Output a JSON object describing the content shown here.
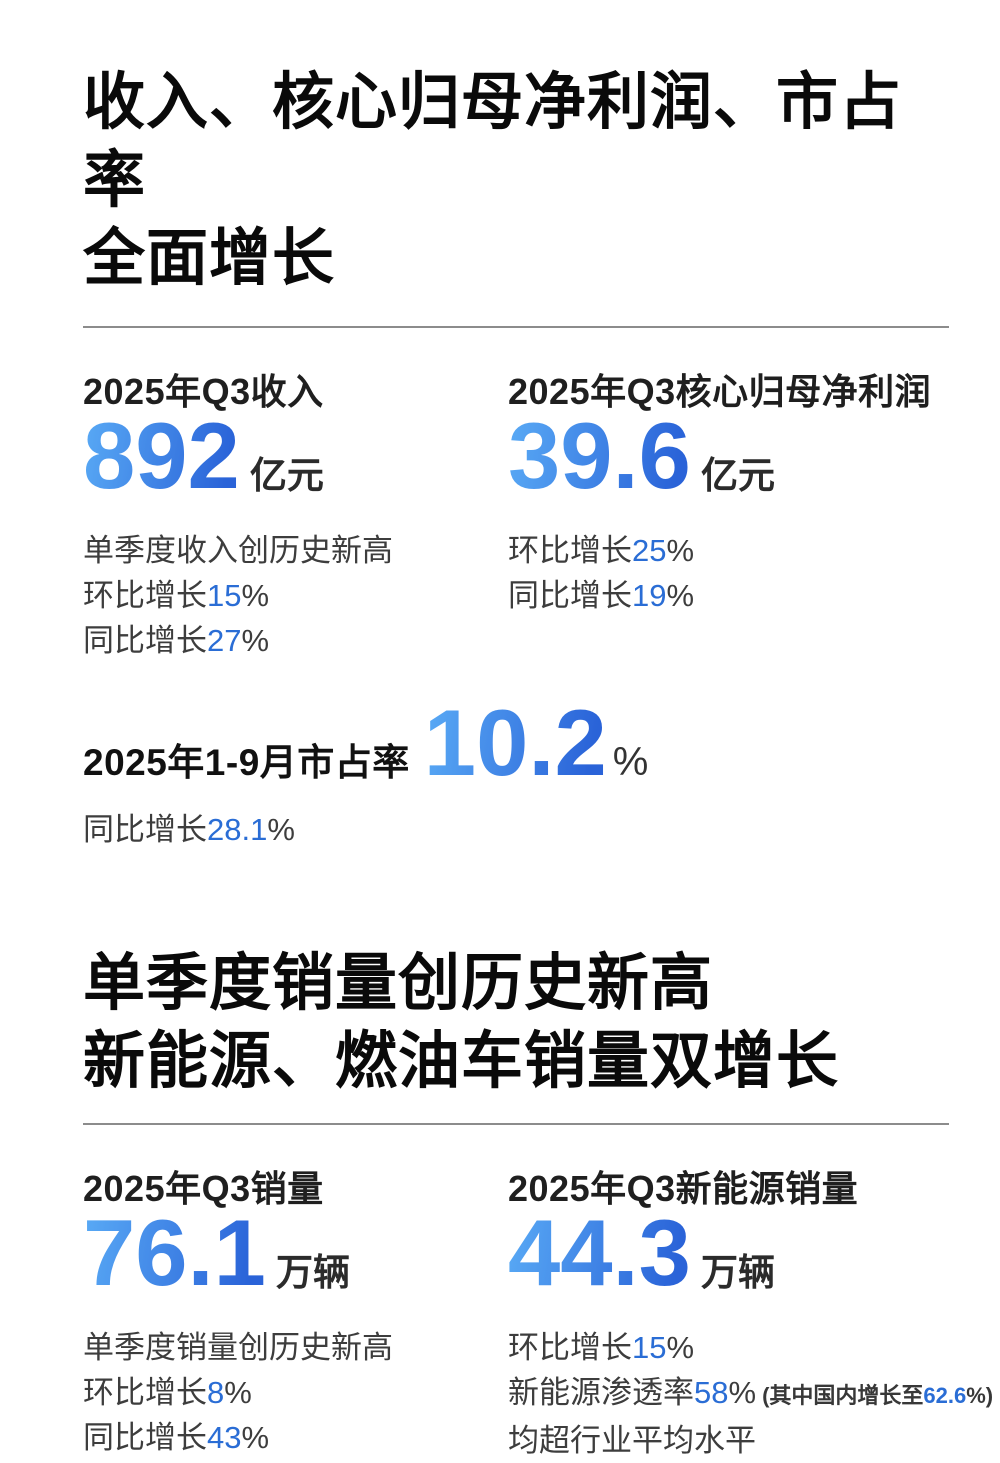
{
  "colors": {
    "background": "#ffffff",
    "title_text": "#0a0a0a",
    "body_text": "#3d3d3d",
    "accent_blue": "#2a6dd5",
    "number_gradient_start": "#57a7f4",
    "number_gradient_end": "#2a63d8",
    "divider": "#8c8c8c"
  },
  "section_financial": {
    "title_line1": "收入、核心归母净利润、市占率",
    "title_line2": "全面增长",
    "blocks": [
      {
        "label": "2025年Q3收入",
        "value": "892",
        "unit": "亿元",
        "highlight_note": "单季度收入创历史新高",
        "metrics": [
          {
            "prefix": "环比增长",
            "value": "15",
            "suffix": "%"
          },
          {
            "prefix": "同比增长",
            "value": "27",
            "suffix": "%"
          }
        ]
      },
      {
        "label": "2025年Q3核心归母净利润",
        "value": "39.6",
        "unit": "亿元",
        "metrics": [
          {
            "prefix": "环比增长",
            "value": "25",
            "suffix": "%"
          },
          {
            "prefix": "同比增长",
            "value": "19",
            "suffix": "%"
          }
        ]
      }
    ],
    "market_share": {
      "label": "2025年1-9月市占率",
      "value": "10.2",
      "unit": "%",
      "metric": {
        "prefix": "同比增长",
        "value": "28.1",
        "suffix": "%"
      }
    }
  },
  "section_sales": {
    "title_line1": "单季度销量创历史新高",
    "title_line2": "新能源、燃油车销量双增长",
    "blocks": [
      {
        "label": "2025年Q3销量",
        "value": "76.1",
        "unit": "万辆",
        "highlight_note": "单季度销量创历史新高",
        "metrics": [
          {
            "prefix": "环比增长",
            "value": "8",
            "suffix": "%"
          },
          {
            "prefix": "同比增长",
            "value": "43",
            "suffix": "%"
          }
        ]
      },
      {
        "label": "2025年Q3新能源销量",
        "value": "44.3",
        "unit": "万辆",
        "metrics": [
          {
            "prefix": "环比增长",
            "value": "15",
            "suffix": "%"
          },
          {
            "prefix": "新能源渗透率",
            "value": "58",
            "suffix": "%",
            "note_prefix": "(其中国内增长至",
            "note_value": "62.6",
            "note_suffix": "%)"
          }
        ],
        "footer_note": "均超行业平均水平"
      }
    ]
  }
}
